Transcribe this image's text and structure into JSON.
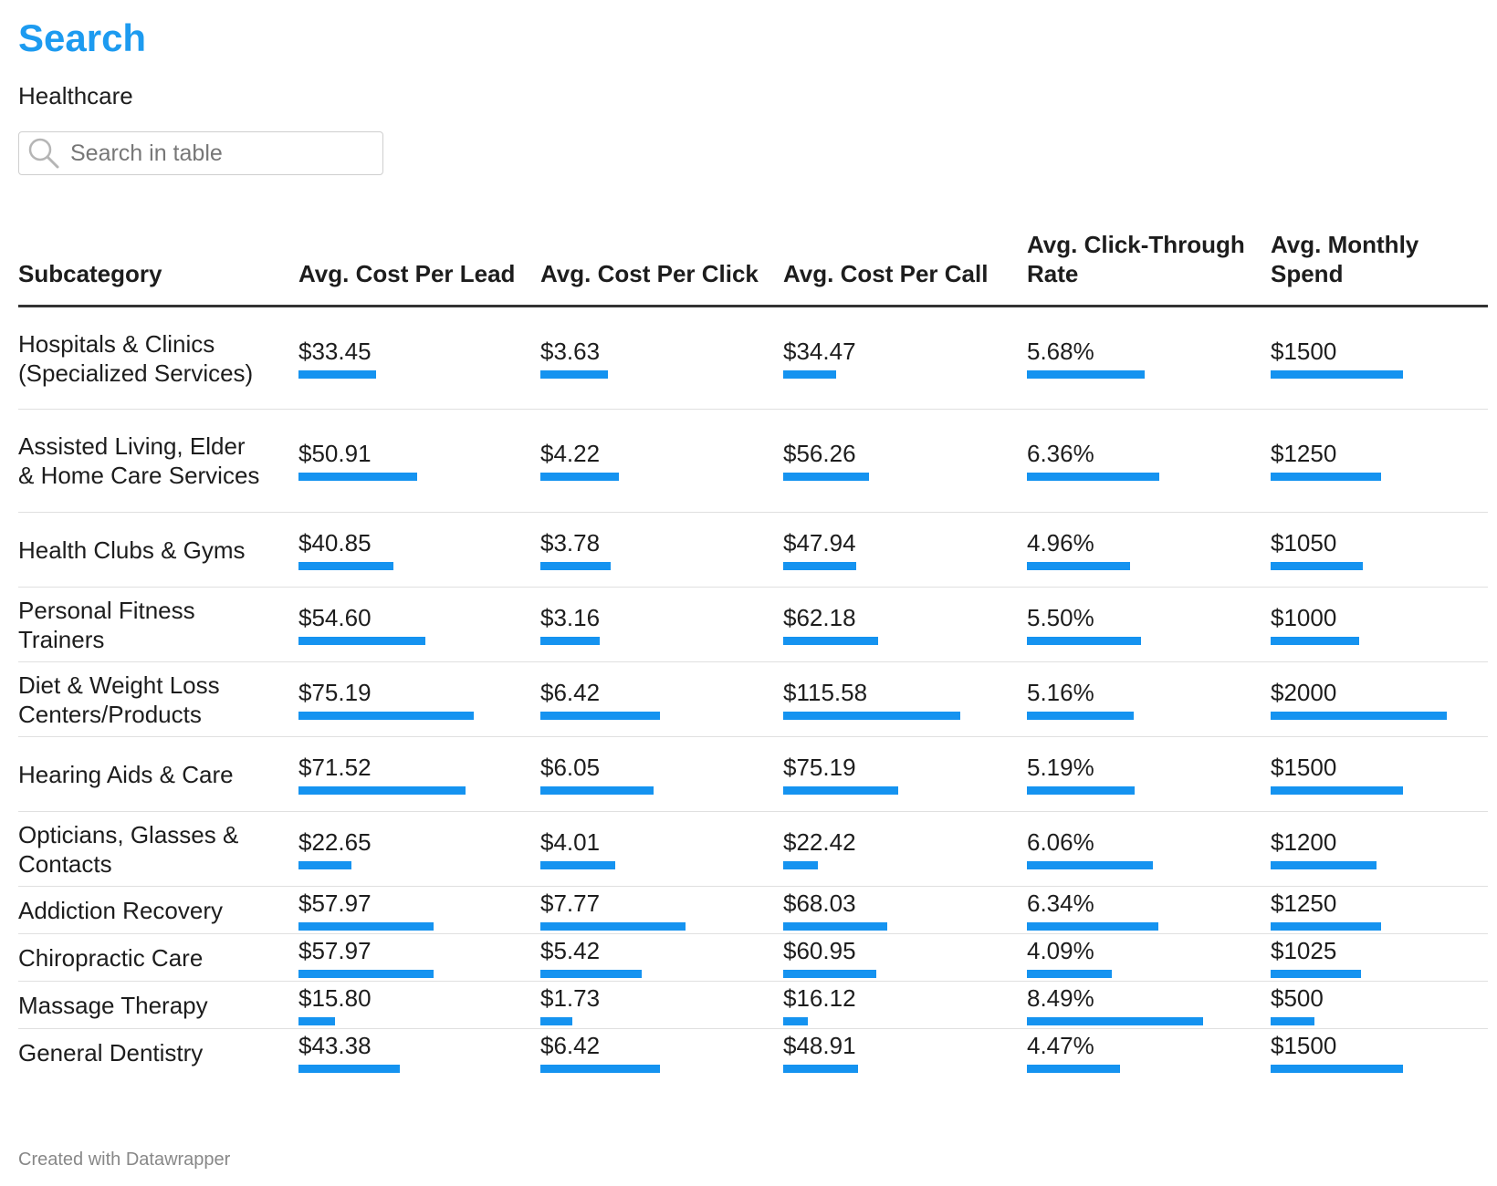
{
  "header": {
    "title": "Search",
    "subtitle": "Healthcare"
  },
  "search": {
    "placeholder": "Search in table"
  },
  "chart_data": {
    "type": "table",
    "columns": [
      "Subcategory",
      "Avg. Cost Per Lead",
      "Avg. Cost Per Click",
      "Avg. Cost Per Call",
      "Avg. Click-Through Rate",
      "Avg. Monthly Spend"
    ],
    "bar_color": "#1593f0",
    "col_max": [
      75.19,
      7.77,
      115.58,
      8.49,
      2000
    ],
    "rows": [
      {
        "name": "Hospitals & Clinics (Specialized Services)",
        "display": [
          "$33.45",
          "$3.63",
          "$34.47",
          "5.68%",
          "$1500"
        ],
        "values": [
          33.45,
          3.63,
          34.47,
          5.68,
          1500
        ]
      },
      {
        "name": "Assisted Living, Elder & Home Care Services",
        "display": [
          "$50.91",
          "$4.22",
          "$56.26",
          "6.36%",
          "$1250"
        ],
        "values": [
          50.91,
          4.22,
          56.26,
          6.36,
          1250
        ]
      },
      {
        "name": "Health Clubs & Gyms",
        "display": [
          "$40.85",
          "$3.78",
          "$47.94",
          "4.96%",
          "$1050"
        ],
        "values": [
          40.85,
          3.78,
          47.94,
          4.96,
          1050
        ]
      },
      {
        "name": "Personal Fitness Trainers",
        "display": [
          "$54.60",
          "$3.16",
          "$62.18",
          "5.50%",
          "$1000"
        ],
        "values": [
          54.6,
          3.16,
          62.18,
          5.5,
          1000
        ]
      },
      {
        "name": "Diet & Weight Loss Centers/Products",
        "display": [
          "$75.19",
          "$6.42",
          "$115.58",
          "5.16%",
          "$2000"
        ],
        "values": [
          75.19,
          6.42,
          115.58,
          5.16,
          2000
        ]
      },
      {
        "name": "Hearing Aids & Care",
        "display": [
          "$71.52",
          "$6.05",
          "$75.19",
          "5.19%",
          "$1500"
        ],
        "values": [
          71.52,
          6.05,
          75.19,
          5.19,
          1500
        ]
      },
      {
        "name": "Opticians, Glasses & Contacts",
        "display": [
          "$22.65",
          "$4.01",
          "$22.42",
          "6.06%",
          "$1200"
        ],
        "values": [
          22.65,
          4.01,
          22.42,
          6.06,
          1200
        ]
      },
      {
        "name": "Addiction Recovery",
        "display": [
          "$57.97",
          "$7.77",
          "$68.03",
          "6.34%",
          "$1250"
        ],
        "values": [
          57.97,
          7.77,
          68.03,
          6.34,
          1250
        ]
      },
      {
        "name": "Chiropractic Care",
        "display": [
          "$57.97",
          "$5.42",
          "$60.95",
          "4.09%",
          "$1025"
        ],
        "values": [
          57.97,
          5.42,
          60.95,
          4.09,
          1025
        ]
      },
      {
        "name": "Massage Therapy",
        "display": [
          "$15.80",
          "$1.73",
          "$16.12",
          "8.49%",
          "$500"
        ],
        "values": [
          15.8,
          1.73,
          16.12,
          8.49,
          500
        ]
      },
      {
        "name": "General Dentistry",
        "display": [
          "$43.38",
          "$6.42",
          "$48.91",
          "4.47%",
          "$1500"
        ],
        "values": [
          43.38,
          6.42,
          48.91,
          4.47,
          1500
        ]
      }
    ]
  },
  "footer": {
    "credit": "Created with Datawrapper"
  }
}
